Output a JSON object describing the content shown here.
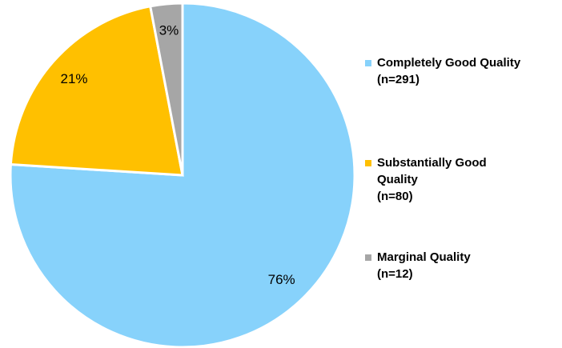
{
  "chart_data": {
    "type": "pie",
    "categories": [
      "Completely Good Quality",
      "Substantially Good Quality",
      "Marginal Quality"
    ],
    "category_notes": [
      "(n=291)",
      "(n=80)",
      "(n=12)"
    ],
    "values": [
      76,
      21,
      3
    ],
    "value_labels": [
      "76%",
      "21%",
      "3%"
    ],
    "colors": [
      "#87d2fb",
      "#ffc000",
      "#a6a6a6"
    ],
    "legend": "right"
  }
}
